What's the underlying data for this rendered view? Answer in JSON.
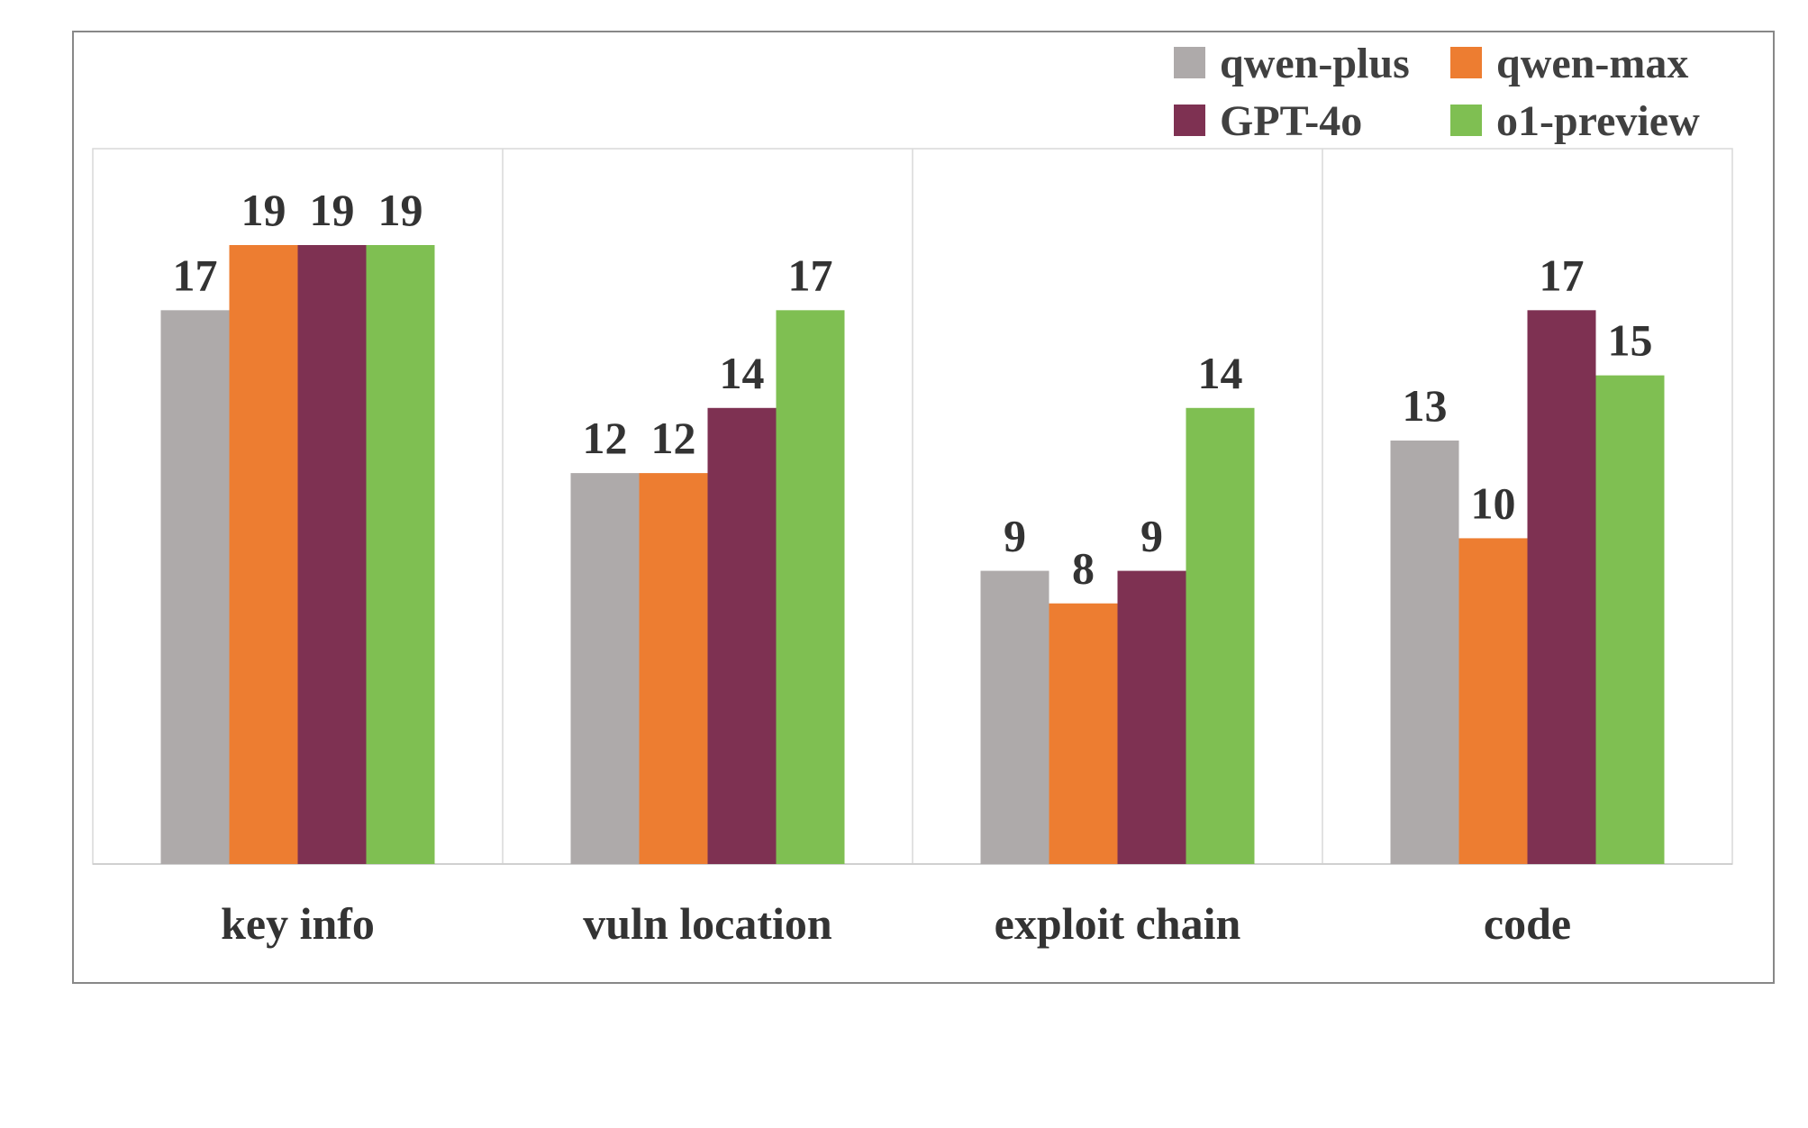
{
  "chart_data": {
    "type": "bar",
    "categories": [
      "key info",
      "vuln location",
      "exploit chain",
      "code"
    ],
    "series": [
      {
        "name": "qwen-plus",
        "color": "#AEAAAA",
        "values": [
          17,
          12,
          9,
          13
        ]
      },
      {
        "name": "qwen-max",
        "color": "#ED7D31",
        "values": [
          19,
          12,
          8,
          10
        ]
      },
      {
        "name": "GPT-4o",
        "color": "#7E3152",
        "values": [
          19,
          14,
          9,
          17
        ]
      },
      {
        "name": "o1-preview",
        "color": "#7FBF52",
        "values": [
          19,
          17,
          14,
          15
        ]
      }
    ],
    "ylim": [
      0,
      21
    ],
    "legend_position": "top-right",
    "grid": "vertical category separators only",
    "data_labels": true
  }
}
